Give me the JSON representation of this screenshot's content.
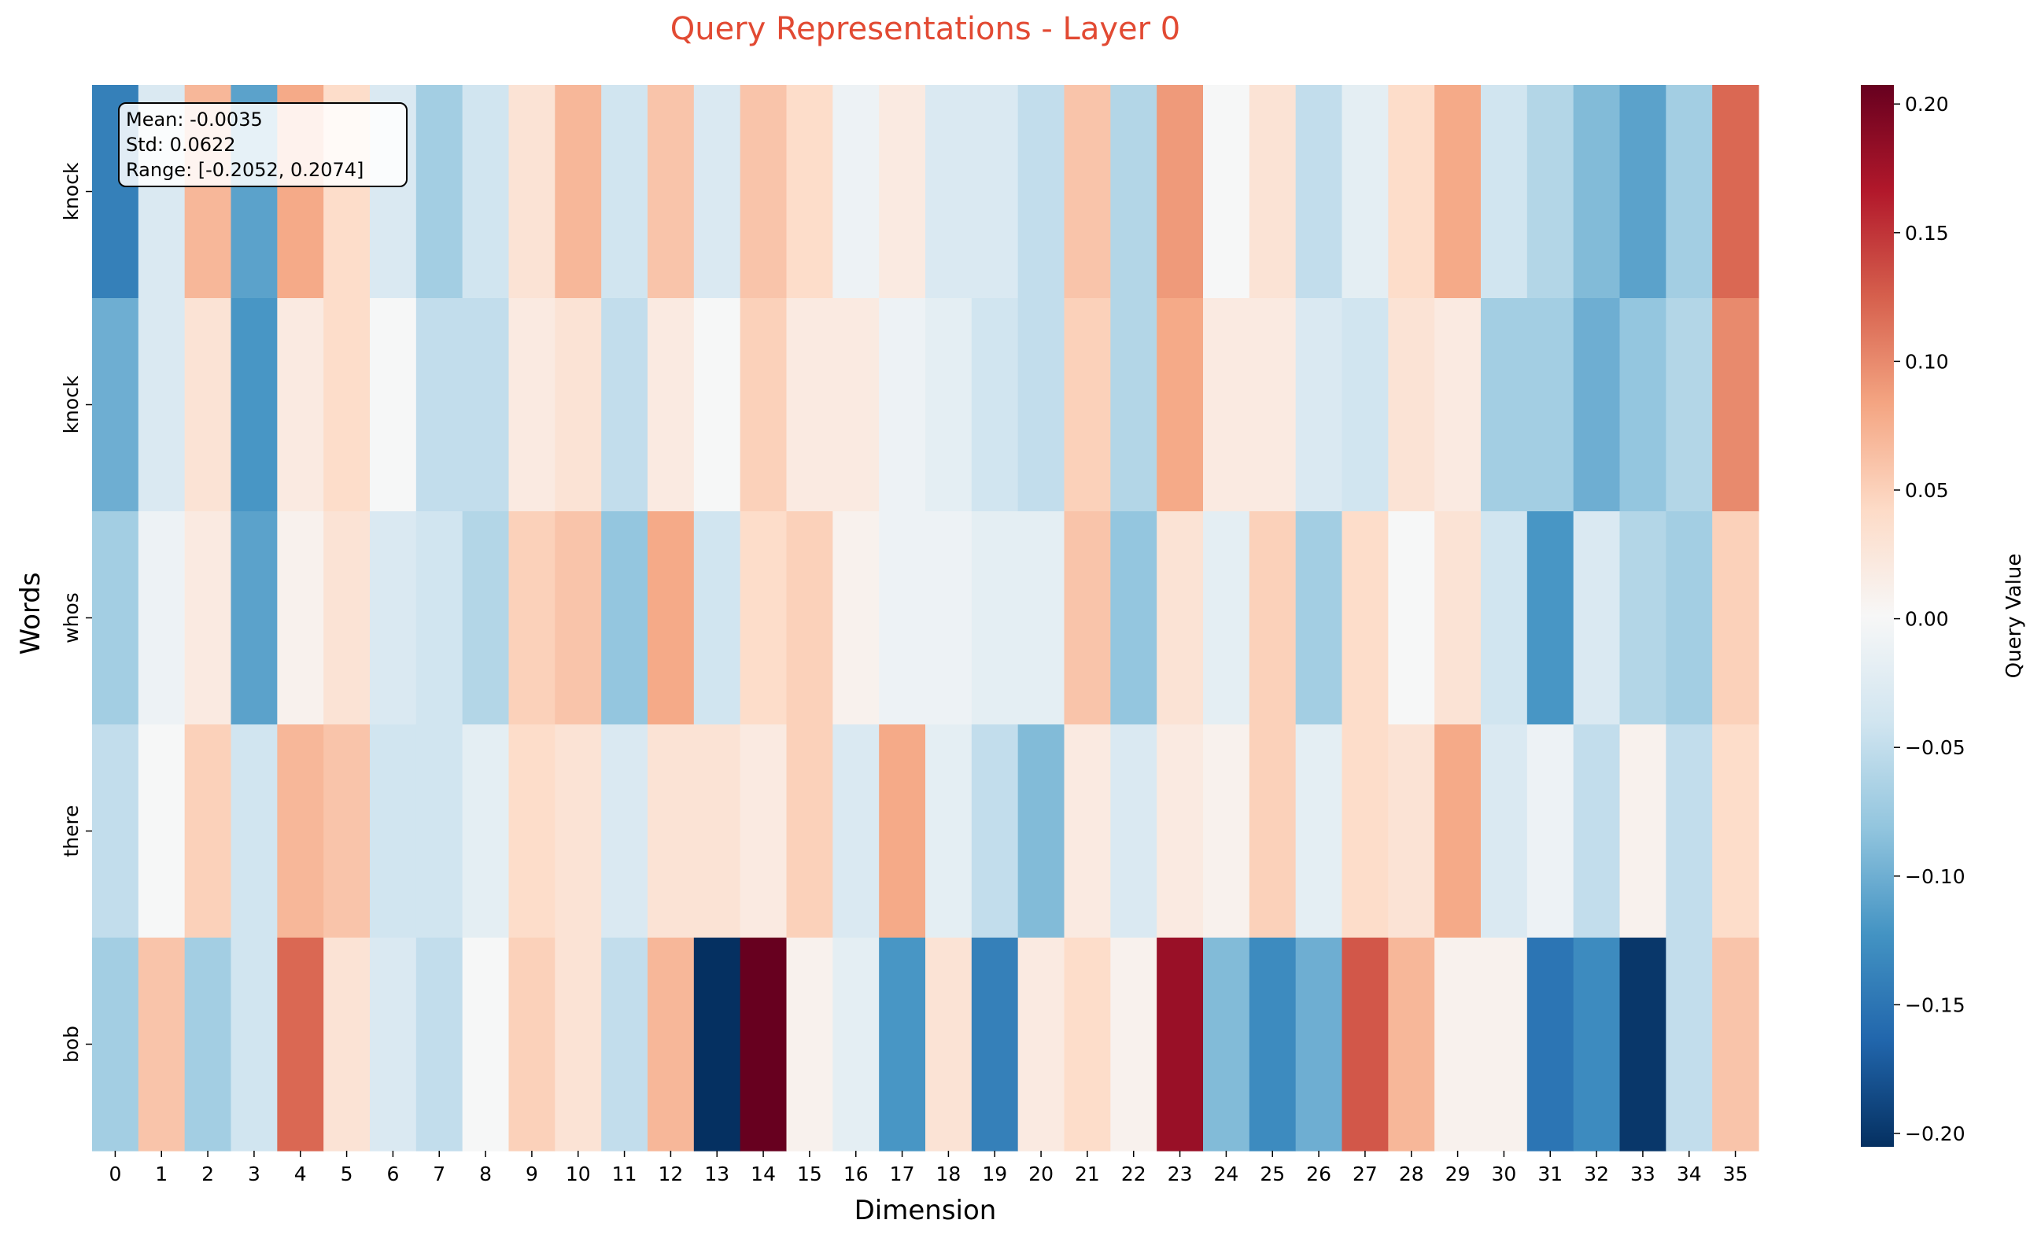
{
  "chart_data": {
    "type": "heatmap",
    "title": "Query Representations - Layer 0",
    "xlabel": "Dimension",
    "ylabel": "Words",
    "colorbar_label": "Query Value",
    "colormap": "RdBu_r",
    "vmin": -0.2052,
    "vmax": 0.2074,
    "rows": [
      "knock",
      "knock",
      "whos",
      "there",
      "bob"
    ],
    "columns": [
      "0",
      "1",
      "2",
      "3",
      "4",
      "5",
      "6",
      "7",
      "8",
      "9",
      "10",
      "11",
      "12",
      "13",
      "14",
      "15",
      "16",
      "17",
      "18",
      "19",
      "20",
      "21",
      "22",
      "23",
      "24",
      "25",
      "26",
      "27",
      "28",
      "29",
      "30",
      "31",
      "32",
      "33",
      "34",
      "35"
    ],
    "values": [
      [
        -0.14,
        -0.03,
        0.07,
        -0.11,
        0.08,
        0.04,
        -0.03,
        -0.07,
        -0.04,
        0.03,
        0.07,
        -0.04,
        0.06,
        -0.03,
        0.06,
        0.04,
        -0.01,
        0.02,
        -0.03,
        -0.03,
        -0.05,
        0.06,
        -0.06,
        0.09,
        0.0,
        0.03,
        -0.05,
        -0.02,
        0.04,
        0.08,
        -0.04,
        -0.06,
        -0.09,
        -0.11,
        -0.07,
        0.12
      ],
      [
        -0.1,
        -0.03,
        0.03,
        -0.12,
        0.02,
        0.04,
        0.0,
        -0.05,
        -0.05,
        0.02,
        0.03,
        -0.05,
        0.02,
        0.0,
        0.05,
        0.02,
        0.02,
        -0.01,
        -0.02,
        -0.04,
        -0.05,
        0.05,
        -0.06,
        0.08,
        0.02,
        0.02,
        -0.03,
        -0.04,
        0.03,
        0.02,
        -0.07,
        -0.07,
        -0.1,
        -0.08,
        -0.06,
        0.1
      ],
      [
        -0.07,
        -0.01,
        0.02,
        -0.11,
        0.01,
        0.03,
        -0.03,
        -0.04,
        -0.06,
        0.05,
        0.06,
        -0.08,
        0.08,
        -0.04,
        0.04,
        0.05,
        0.01,
        -0.01,
        -0.01,
        -0.02,
        -0.02,
        0.06,
        -0.08,
        0.03,
        -0.02,
        0.05,
        -0.07,
        0.04,
        0.0,
        0.03,
        -0.04,
        -0.12,
        -0.03,
        -0.06,
        -0.07,
        0.05
      ],
      [
        -0.05,
        0.0,
        0.05,
        -0.04,
        0.07,
        0.06,
        -0.04,
        -0.04,
        -0.02,
        0.04,
        0.03,
        -0.03,
        0.03,
        0.03,
        0.02,
        0.05,
        -0.03,
        0.08,
        -0.02,
        -0.05,
        -0.09,
        0.02,
        -0.03,
        0.02,
        0.01,
        0.05,
        -0.02,
        0.04,
        0.03,
        0.08,
        -0.03,
        -0.01,
        -0.05,
        0.01,
        -0.05,
        0.04
      ],
      [
        -0.07,
        0.06,
        -0.07,
        -0.04,
        0.12,
        0.03,
        -0.03,
        -0.05,
        0.0,
        0.05,
        0.03,
        -0.05,
        0.07,
        -0.2052,
        0.2074,
        0.01,
        -0.02,
        -0.12,
        0.03,
        -0.14,
        0.02,
        0.04,
        0.01,
        0.18,
        -0.09,
        -0.13,
        -0.1,
        0.13,
        0.07,
        0.01,
        0.01,
        -0.15,
        -0.13,
        -0.2,
        -0.05,
        0.06
      ]
    ],
    "colorbar_ticks": [
      "0.20",
      "0.15",
      "0.10",
      "0.05",
      "0.00",
      "−0.05",
      "−0.10",
      "−0.15",
      "−0.20"
    ],
    "stats": {
      "mean": "Mean: -0.0035",
      "std": "Std: 0.0622",
      "range": "Range: [-0.2052, 0.2074]"
    }
  },
  "colors": {
    "title": "#e24a33"
  }
}
